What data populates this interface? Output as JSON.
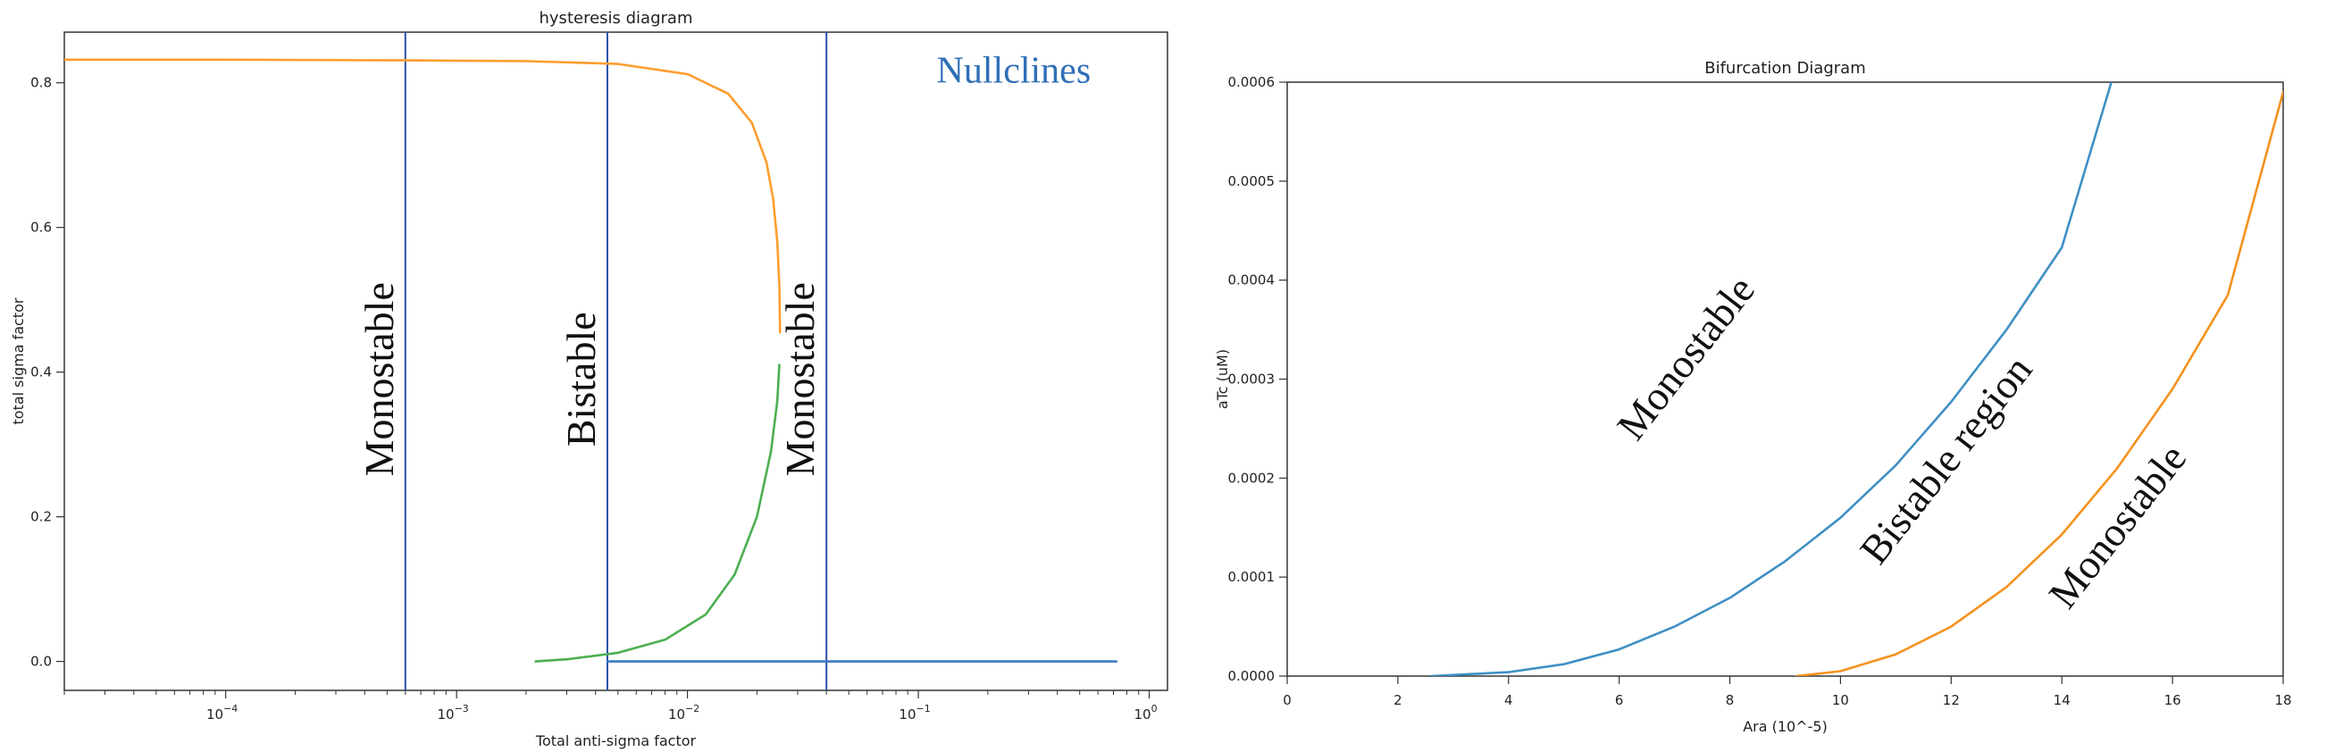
{
  "chart_data": [
    {
      "type": "line",
      "title": "hysteresis diagram",
      "xlabel": "Total anti-sigma factor",
      "ylabel": "total sigma factor",
      "xscale": "log",
      "xlim": [
        2e-05,
        1.2
      ],
      "ylim": [
        -0.04,
        0.87
      ],
      "x_ticks": [
        {
          "value": 0.0001,
          "base": "10",
          "exp": "−4"
        },
        {
          "value": 0.001,
          "base": "10",
          "exp": "−3"
        },
        {
          "value": 0.01,
          "base": "10",
          "exp": "−2"
        },
        {
          "value": 0.1,
          "base": "10",
          "exp": "−1"
        },
        {
          "value": 1,
          "base": "10",
          "exp": "0"
        }
      ],
      "y_ticks": [
        {
          "value": 0.0,
          "label": "0.0"
        },
        {
          "value": 0.2,
          "label": "0.2"
        },
        {
          "value": 0.4,
          "label": "0.4"
        },
        {
          "value": 0.6,
          "label": "0.6"
        },
        {
          "value": 0.8,
          "label": "0.8"
        }
      ],
      "grid": false,
      "series": [
        {
          "color": "#ff9d2e",
          "x": [
            2e-05,
            0.0001,
            0.0006,
            0.002,
            0.005,
            0.01,
            0.015,
            0.019,
            0.022,
            0.0235,
            0.0245,
            0.025,
            0.0252
          ],
          "y": [
            0.832,
            0.832,
            0.831,
            0.83,
            0.826,
            0.812,
            0.785,
            0.745,
            0.69,
            0.64,
            0.58,
            0.52,
            0.455
          ]
        },
        {
          "color": "#4caf50",
          "x": [
            0.0022,
            0.003,
            0.005,
            0.008,
            0.012,
            0.016,
            0.02,
            0.023,
            0.0245,
            0.025
          ],
          "y": [
            0.0,
            0.003,
            0.012,
            0.03,
            0.065,
            0.12,
            0.2,
            0.29,
            0.36,
            0.41
          ]
        },
        {
          "color": "#3a79c2",
          "x": [
            0.0045,
            0.01,
            0.05,
            0.2,
            0.72
          ],
          "y": [
            0.0,
            0.0,
            0.0,
            0.0,
            0.0
          ]
        }
      ],
      "vlines": [
        {
          "x": 0.0006,
          "color": "#2b4fa8"
        },
        {
          "x": 0.0045,
          "color": "#2b4fa8"
        },
        {
          "x": 0.04,
          "color": "#2b4fa8"
        }
      ],
      "annotations": [
        {
          "text": "Monostable",
          "x": 0.0006,
          "y": 0.39,
          "rotate": -90,
          "style": "big"
        },
        {
          "text": "Bistable",
          "x": 0.0045,
          "y": 0.39,
          "rotate": -90,
          "style": "big"
        },
        {
          "text": "Monostable",
          "x": 0.04,
          "y": 0.39,
          "rotate": -90,
          "style": "big"
        },
        {
          "text": "Nullclines",
          "x": 0.12,
          "y": 0.8,
          "rotate": 0,
          "style": "blue"
        }
      ]
    },
    {
      "type": "line",
      "title": "Bifurcation Diagram",
      "xlabel": "Ara (10^-5)",
      "ylabel": "aTc (uM)",
      "xlim": [
        0,
        18
      ],
      "ylim": [
        0,
        0.0006
      ],
      "x_ticks": [
        {
          "value": 0,
          "label": "0"
        },
        {
          "value": 2,
          "label": "2"
        },
        {
          "value": 4,
          "label": "4"
        },
        {
          "value": 6,
          "label": "6"
        },
        {
          "value": 8,
          "label": "8"
        },
        {
          "value": 10,
          "label": "10"
        },
        {
          "value": 12,
          "label": "12"
        },
        {
          "value": 14,
          "label": "14"
        },
        {
          "value": 16,
          "label": "16"
        },
        {
          "value": 18,
          "label": "18"
        }
      ],
      "y_ticks": [
        {
          "value": 0,
          "label": "0.0000"
        },
        {
          "value": 0.0001,
          "label": "0.0001"
        },
        {
          "value": 0.0002,
          "label": "0.0002"
        },
        {
          "value": 0.0003,
          "label": "0.0003"
        },
        {
          "value": 0.0004,
          "label": "0.0004"
        },
        {
          "value": 0.0005,
          "label": "0.0005"
        },
        {
          "value": 0.0006,
          "label": "0.0006"
        }
      ],
      "grid": false,
      "series": [
        {
          "color": "#3f8fc4",
          "x": [
            2.6,
            4,
            5,
            6,
            7,
            8,
            9,
            10,
            11,
            12,
            13,
            14,
            14.9
          ],
          "y": [
            0,
            4e-06,
            1.2e-05,
            2.7e-05,
            5e-05,
            7.9e-05,
            0.000116,
            0.00016,
            0.000213,
            0.000277,
            0.00035,
            0.000433,
            0.000601
          ]
        },
        {
          "color": "#f5921e",
          "x": [
            9.2,
            10,
            11,
            12,
            13,
            14,
            15,
            16,
            17,
            18
          ],
          "y": [
            0,
            5e-06,
            2.2e-05,
            5e-05,
            9e-05,
            0.000143,
            0.00021,
            0.00029,
            0.000385,
            0.00059
          ]
        }
      ],
      "annotations": [
        {
          "text": "Monostable",
          "x": 7.4,
          "y": 0.000313,
          "rotate": -52,
          "style": "big"
        },
        {
          "text": "Bistable region",
          "x": 12.1,
          "y": 0.00021,
          "rotate": -52,
          "style": "big"
        },
        {
          "text": "Monostable",
          "x": 15.2,
          "y": 0.000143,
          "rotate": -52,
          "style": "big"
        }
      ]
    }
  ]
}
